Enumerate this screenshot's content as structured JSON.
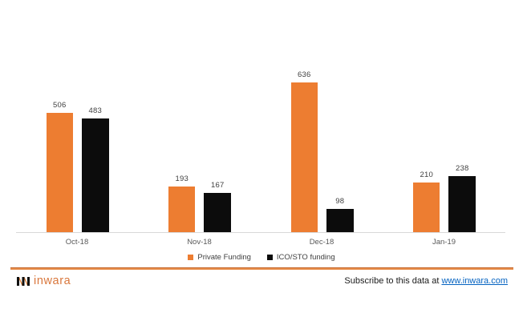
{
  "chart_data": {
    "type": "bar",
    "categories": [
      "Oct-18",
      "Nov-18",
      "Dec-18",
      "Jan-19"
    ],
    "series": [
      {
        "name": "Private Funding",
        "color": "#ED7D31",
        "values": [
          506,
          193,
          636,
          210
        ]
      },
      {
        "name": "ICO/STO funding",
        "color": "#0C0C0C",
        "values": [
          483,
          167,
          98,
          238
        ]
      }
    ],
    "title": "",
    "xlabel": "",
    "ylabel": "",
    "ylim": [
      0,
      700
    ],
    "grid": false,
    "legend_position": "bottom",
    "value_labels_shown": true
  },
  "footer": {
    "logo_text": "inwara",
    "subscribe_text": "Subscribe to this data at ",
    "subscribe_link": "www.inwara.com"
  },
  "colors": {
    "bar_orange": "#ED7D31",
    "bar_black": "#0C0C0C",
    "axis_line": "#D9D9D9",
    "value_label": "#404040",
    "category_label": "#595959",
    "divider_orange": "#D9772F",
    "logo_orange": "#D9773C",
    "link_blue": "#0563C1"
  },
  "icons": {
    "logo_mark": "inwara-nn-monogram"
  }
}
